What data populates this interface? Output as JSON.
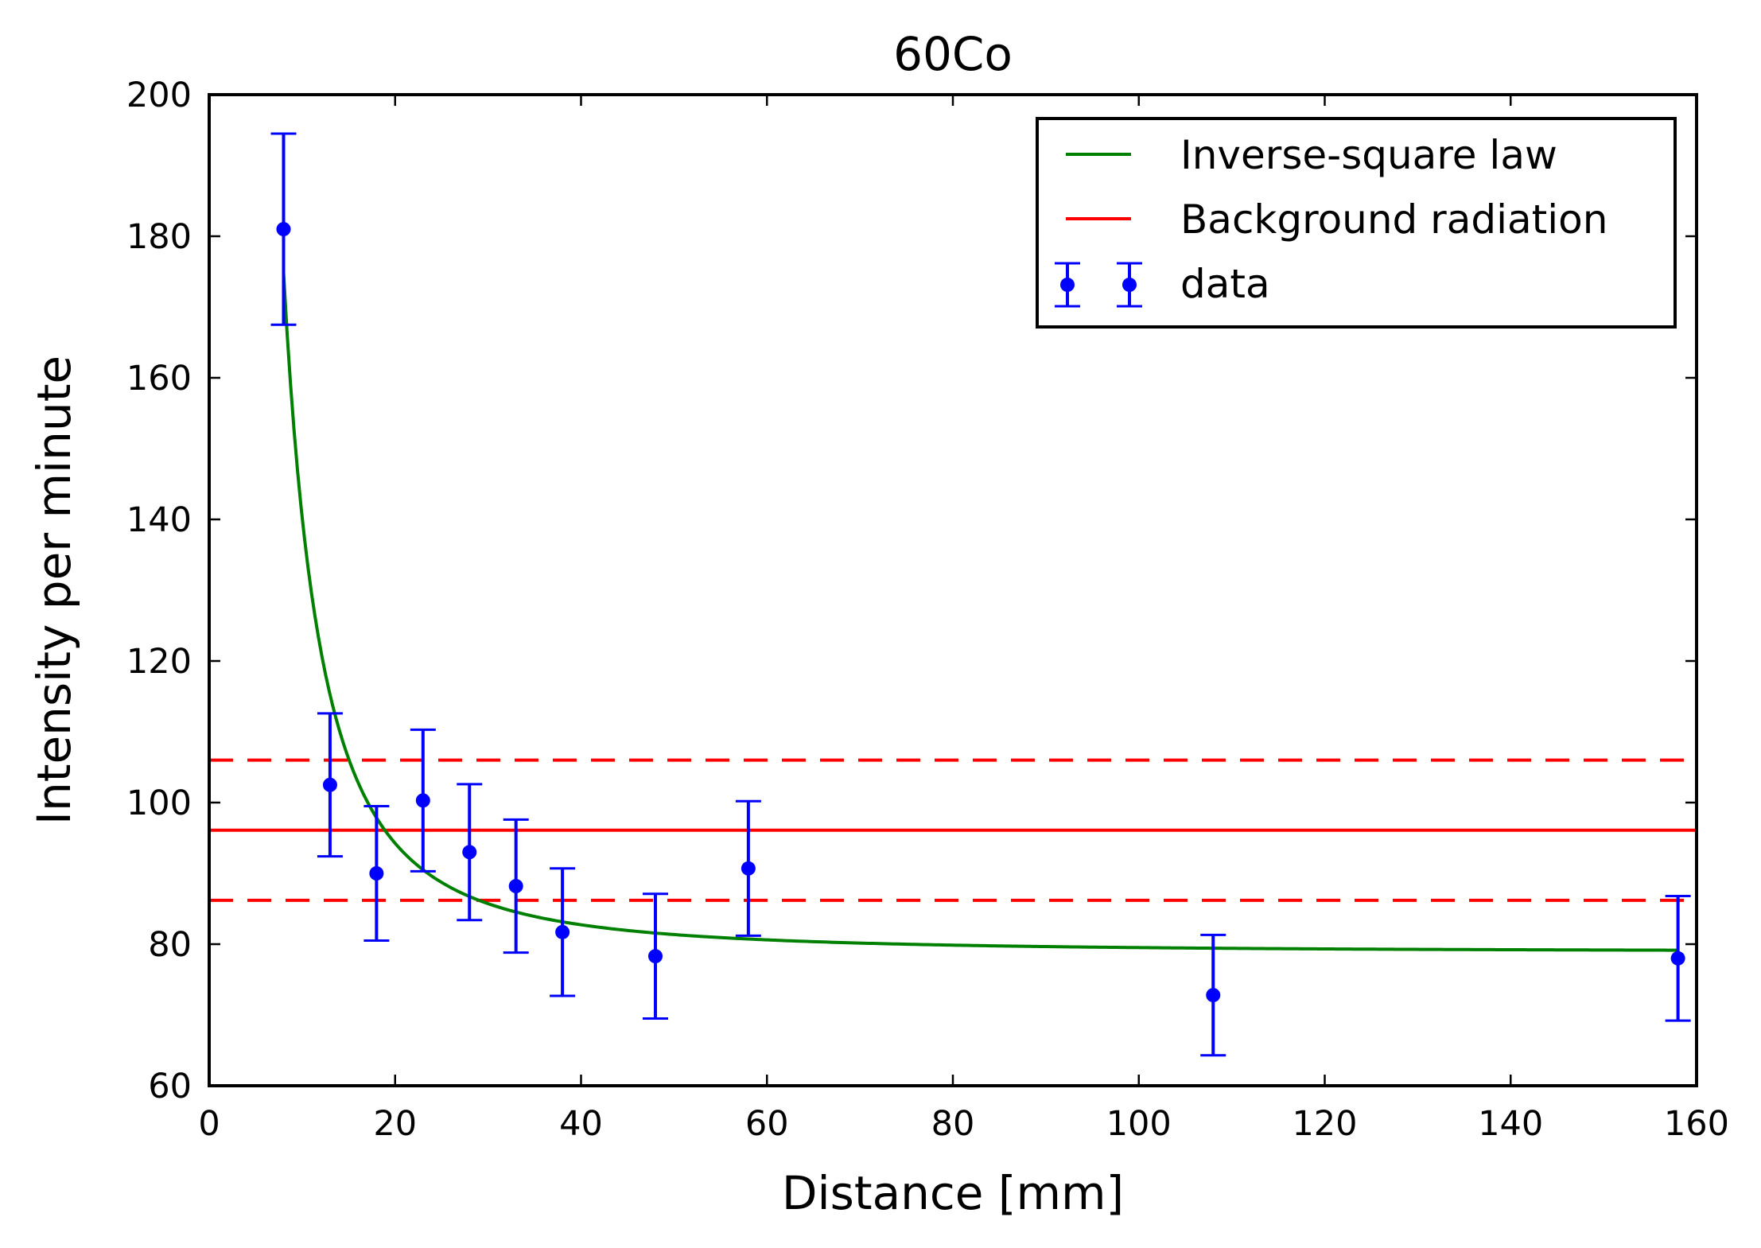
{
  "chart_data": {
    "type": "scatter",
    "title": "60Co",
    "xlabel": "Distance [mm]",
    "ylabel": "Intensity per minute",
    "xlim": [
      0,
      160
    ],
    "ylim": [
      60,
      200
    ],
    "xticks": [
      0,
      20,
      40,
      60,
      80,
      100,
      120,
      140,
      160
    ],
    "yticks": [
      60,
      80,
      100,
      120,
      140,
      160,
      180,
      200
    ],
    "grid": false,
    "legend_position": "top-right",
    "data": {
      "name": "data",
      "color": "#0000ff",
      "x": [
        8,
        13,
        18,
        23,
        28,
        33,
        38,
        48,
        58,
        108,
        158
      ],
      "y": [
        181.0,
        102.5,
        90.0,
        100.3,
        93.0,
        88.2,
        81.7,
        78.3,
        90.7,
        72.8,
        78.0
      ],
      "yerr": [
        13.5,
        10.1,
        9.5,
        10.0,
        9.6,
        9.4,
        9.0,
        8.8,
        9.5,
        8.5,
        8.8
      ]
    },
    "fit": {
      "name": "Inverse-square law",
      "color": "#008000",
      "model": "a / x^2 + c",
      "a": 6140,
      "c": 78.9,
      "x_range": [
        8,
        158
      ]
    },
    "background": {
      "name": "Background radiation",
      "color": "#ff0000",
      "value": 96.1,
      "upper": 106.0,
      "lower": 86.2
    }
  }
}
